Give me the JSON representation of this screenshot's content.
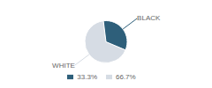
{
  "chart_data": {
    "type": "pie",
    "categories": [
      "WHITE",
      "BLACK"
    ],
    "values": [
      66.7,
      33.3
    ],
    "value_labels": [
      "66.7%",
      "33.3%"
    ],
    "colors": [
      "#d6dce4",
      "#2e5f7a"
    ],
    "legend": "bottom"
  }
}
